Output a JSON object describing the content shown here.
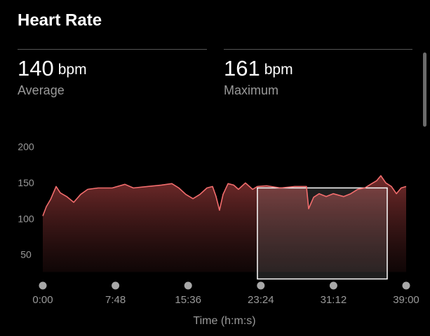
{
  "header": {
    "title": "Heart Rate"
  },
  "stats": [
    {
      "value": 140,
      "unit": "bpm",
      "label": "Average"
    },
    {
      "value": 161,
      "unit": "bpm",
      "label": "Maximum"
    }
  ],
  "chart_data": {
    "type": "area",
    "x_label": "Time (h:m:s)",
    "x": [
      0,
      23,
      50,
      86,
      113,
      154,
      199,
      244,
      289,
      357,
      447,
      529,
      583,
      673,
      763,
      831,
      876,
      921,
      967,
      1012,
      1057,
      1093,
      1116,
      1138,
      1161,
      1193,
      1229,
      1260,
      1305,
      1351,
      1382,
      1441,
      1531,
      1622,
      1698,
      1712,
      1744,
      1780,
      1825,
      1870,
      1938,
      1983,
      2028,
      2073,
      2118,
      2150,
      2177,
      2209,
      2245,
      2277,
      2308,
      2340
    ],
    "values": [
      105,
      118,
      128,
      146,
      137,
      132,
      124,
      135,
      142,
      144,
      144,
      149,
      144,
      146,
      148,
      150,
      144,
      135,
      129,
      135,
      144,
      146,
      132,
      113,
      135,
      150,
      148,
      142,
      151,
      142,
      146,
      147,
      144,
      146,
      146,
      115,
      131,
      136,
      132,
      136,
      132,
      136,
      142,
      144,
      150,
      154,
      161,
      151,
      146,
      136,
      144,
      146
    ],
    "color": "#f26d6d",
    "xlim": [
      0,
      2340
    ],
    "xticks": [
      {
        "value": 0,
        "label": "0:00"
      },
      {
        "value": 468,
        "label": "7:48"
      },
      {
        "value": 936,
        "label": "15:36"
      },
      {
        "value": 1404,
        "label": "23:24"
      },
      {
        "value": 1872,
        "label": "31:12"
      },
      {
        "value": 2340,
        "label": "39:00"
      }
    ],
    "ylim": [
      27,
      200
    ],
    "yticks": [
      50,
      100,
      150,
      200
    ],
    "selection": {
      "start": 1382,
      "end": 2218,
      "value": 144
    }
  }
}
